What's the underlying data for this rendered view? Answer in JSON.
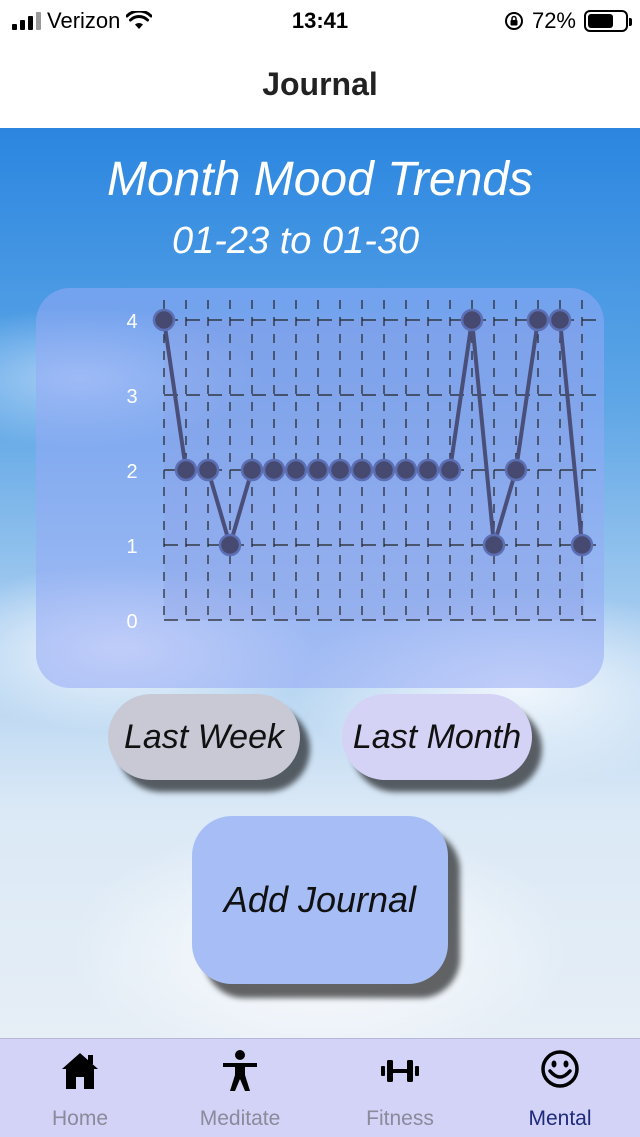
{
  "status_bar": {
    "carrier": "Verizon",
    "time": "13:41",
    "battery": "72%",
    "battery_level": 0.72
  },
  "nav": {
    "title": "Journal"
  },
  "header": {
    "title": "Month Mood Trends",
    "range": "01-23 to 01-30"
  },
  "chart_data": {
    "type": "line",
    "x": [
      1,
      2,
      3,
      4,
      5,
      6,
      7,
      8,
      9,
      10,
      11,
      12,
      13,
      14,
      15,
      16,
      17,
      18,
      19,
      20
    ],
    "series": [
      {
        "values": [
          4,
          2,
          2,
          1,
          2,
          2,
          2,
          2,
          2,
          2,
          2,
          2,
          2,
          2,
          4,
          1,
          2,
          4,
          4,
          1
        ]
      }
    ],
    "yticks": [
      "0",
      "1",
      "2",
      "3",
      "4"
    ],
    "ylim": [
      0,
      4
    ],
    "grid": true,
    "line_color": "#4a4f7a",
    "marker_color": "#464a70",
    "marker_stroke": "#5c6fb5"
  },
  "buttons": {
    "last_week": "Last Week",
    "last_month": "Last Month",
    "add_journal": "Add Journal"
  },
  "tabs": [
    {
      "label": "Home",
      "icon": "house-icon",
      "active": false
    },
    {
      "label": "Meditate",
      "icon": "person-icon",
      "active": false
    },
    {
      "label": "Fitness",
      "icon": "dumbbell-icon",
      "active": false
    },
    {
      "label": "Mental",
      "icon": "smiley-icon",
      "active": true
    }
  ],
  "colors": {
    "tab_active": "#1e2a7a",
    "tab_inactive": "#8a8a9a",
    "tab_bar": "#d3d3f7"
  }
}
